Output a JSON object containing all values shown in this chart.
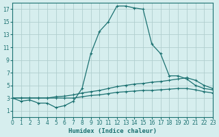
{
  "xlabel": "Humidex (Indice chaleur)",
  "background_color": "#d6eeee",
  "grid_color": "#b0cece",
  "line_color": "#1a7070",
  "xlim": [
    0,
    23
  ],
  "ylim": [
    0,
    18
  ],
  "xticks": [
    0,
    1,
    2,
    3,
    4,
    5,
    6,
    7,
    8,
    9,
    10,
    11,
    12,
    13,
    14,
    15,
    16,
    17,
    18,
    19,
    20,
    21,
    22,
    23
  ],
  "yticks": [
    1,
    3,
    5,
    7,
    9,
    11,
    13,
    15,
    17
  ],
  "curve1_x": [
    0,
    1,
    2,
    3,
    4,
    5,
    6,
    7,
    8,
    9,
    10,
    11,
    12,
    13,
    14,
    15,
    16,
    17,
    18,
    19,
    20,
    21,
    22,
    23
  ],
  "curve1_y": [
    3,
    2.5,
    2.7,
    2.2,
    2.2,
    1.5,
    1.8,
    2.5,
    4.5,
    10,
    13.5,
    15,
    17.5,
    17.5,
    17.2,
    17,
    11.5,
    10,
    6.5,
    6.5,
    6,
    5,
    4.5,
    4.3
  ],
  "curve2_x": [
    0,
    1,
    2,
    3,
    4,
    5,
    6,
    7,
    8,
    9,
    10,
    11,
    12,
    13,
    14,
    15,
    16,
    17,
    18,
    19,
    20,
    21,
    22,
    23
  ],
  "curve2_y": [
    3,
    3,
    3,
    3,
    3,
    3.2,
    3.3,
    3.5,
    3.8,
    4.0,
    4.2,
    4.5,
    4.8,
    5.0,
    5.2,
    5.3,
    5.5,
    5.6,
    5.8,
    6.0,
    6.2,
    5.8,
    5.0,
    4.5
  ],
  "curve3_x": [
    0,
    1,
    2,
    3,
    4,
    5,
    6,
    7,
    8,
    9,
    10,
    11,
    12,
    13,
    14,
    15,
    16,
    17,
    18,
    19,
    20,
    21,
    22,
    23
  ],
  "curve3_y": [
    3,
    3,
    3,
    3,
    3,
    3.0,
    3.0,
    3.0,
    3.2,
    3.4,
    3.5,
    3.7,
    3.9,
    4.0,
    4.1,
    4.2,
    4.2,
    4.3,
    4.4,
    4.5,
    4.5,
    4.3,
    4.0,
    3.8
  ]
}
